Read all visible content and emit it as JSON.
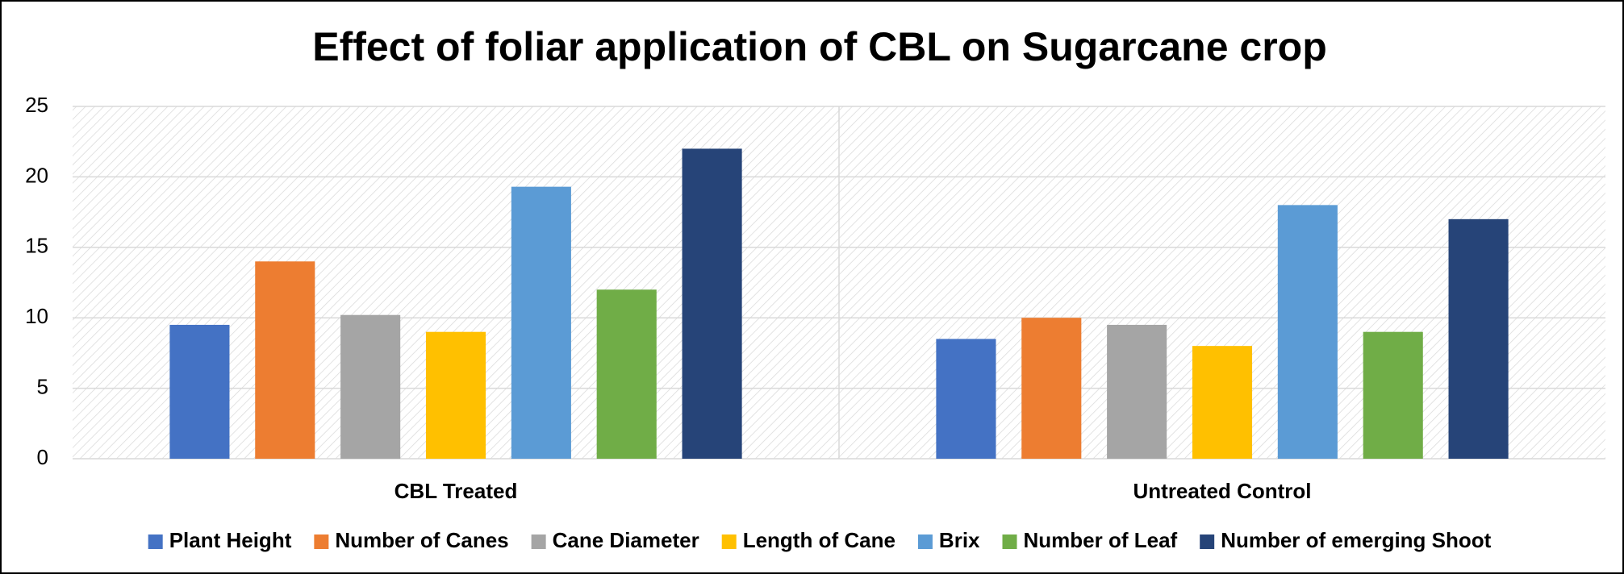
{
  "chart_data": {
    "type": "bar",
    "title": "Effect of foliar application of  CBL on Sugarcane crop",
    "categories": [
      "CBL Treated",
      "Untreated Control"
    ],
    "series": [
      {
        "name": "Plant Height",
        "color": "#4472c4",
        "values": [
          9.5,
          8.5
        ]
      },
      {
        "name": "Number of Canes",
        "color": "#ed7d31",
        "values": [
          14,
          10
        ]
      },
      {
        "name": "Cane Diameter",
        "color": "#a5a5a5",
        "values": [
          10.2,
          9.5
        ]
      },
      {
        "name": "Length of Cane",
        "color": "#ffc000",
        "values": [
          9,
          8
        ]
      },
      {
        "name": "Brix",
        "color": "#5b9bd5",
        "values": [
          19.3,
          18
        ]
      },
      {
        "name": "Number of Leaf",
        "color": "#70ad47",
        "values": [
          12,
          9
        ]
      },
      {
        "name": "Number of emerging Shoot",
        "color": "#264478",
        "values": [
          22,
          17
        ]
      }
    ],
    "ylim": [
      0,
      25
    ],
    "yticks": [
      0,
      5,
      10,
      15,
      20,
      25
    ],
    "grid": true,
    "legend": "bottom"
  }
}
